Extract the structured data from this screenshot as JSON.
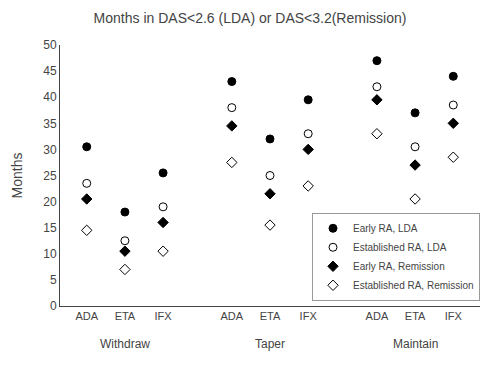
{
  "chart_data": {
    "type": "scatter",
    "title": "Months in DAS<2.6 (LDA) or DAS<3.2(Remission)",
    "ylabel": "Months",
    "categories": [
      "ADA",
      "ETA",
      "IFX",
      "ADA",
      "ETA",
      "IFX",
      "ADA",
      "ETA",
      "IFX"
    ],
    "annotations": [
      "Withdraw",
      "Taper",
      "Maintain"
    ],
    "series": [
      {
        "name": "Early RA, LDA",
        "marker": "circle",
        "color": "black",
        "values": [
          30.5,
          18.0,
          25.5,
          43.0,
          32.0,
          39.5,
          47.0,
          37.0,
          44.0
        ]
      },
      {
        "name": "Established RA, LDA",
        "marker": "circle-open",
        "color": "black",
        "values": [
          23.5,
          12.5,
          19.0,
          38.0,
          25.0,
          33.0,
          42.0,
          30.5,
          38.5
        ]
      },
      {
        "name": "Early RA, Remission",
        "marker": "diamond",
        "color": "black",
        "values": [
          20.5,
          10.5,
          16.0,
          34.5,
          21.5,
          30.0,
          39.5,
          27.0,
          35.0
        ]
      },
      {
        "name": "Established RA, Remission",
        "marker": "diamond-open",
        "color": "black",
        "values": [
          14.5,
          7.0,
          10.5,
          27.5,
          15.5,
          23.0,
          33.0,
          20.5,
          28.5
        ]
      }
    ],
    "ylim": [
      0,
      50
    ],
    "yticks": [
      0,
      5,
      10,
      15,
      20,
      25,
      30,
      35,
      40,
      45,
      50
    ],
    "grid": false,
    "legend": "lower right"
  }
}
